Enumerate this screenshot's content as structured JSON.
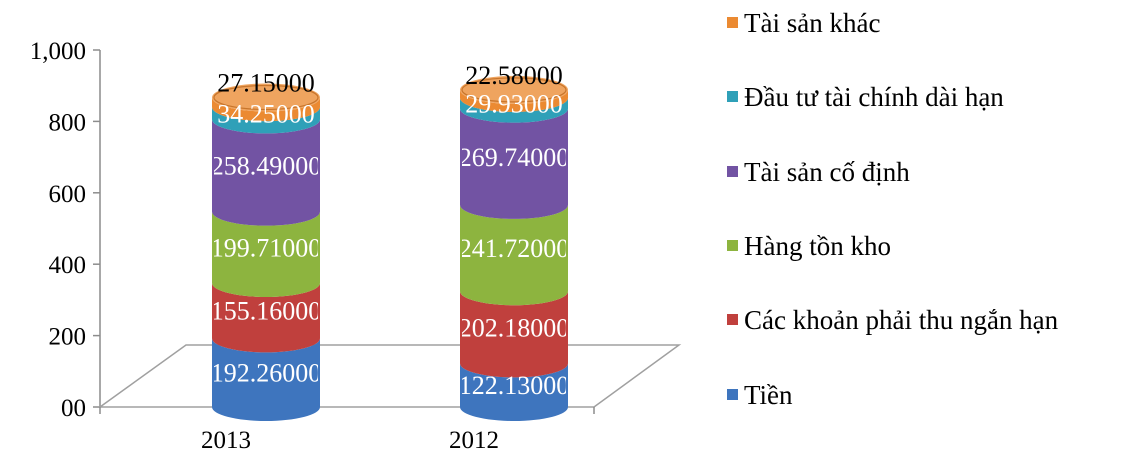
{
  "chart_data": {
    "type": "bar",
    "stacked": true,
    "style": "3d-cylinder",
    "categories": [
      "2013",
      "2012"
    ],
    "series": [
      {
        "name": "Tiền",
        "values": [
          192.26,
          122.13
        ],
        "labels": [
          "192.26000",
          "122.13000"
        ],
        "color": "#3E75BE"
      },
      {
        "name": "Các khoản phải thu ngắn hạn",
        "values": [
          155.16,
          202.18
        ],
        "labels": [
          "155.16000",
          "202.18000"
        ],
        "color": "#C0403D"
      },
      {
        "name": "Hàng tồn kho",
        "values": [
          199.71,
          241.72
        ],
        "labels": [
          "199.71000",
          "241.72000"
        ],
        "color": "#8DB43F"
      },
      {
        "name": "Tài sản cố định",
        "values": [
          258.49,
          269.74
        ],
        "labels": [
          "258.49000",
          "269.74000"
        ],
        "color": "#7253A3"
      },
      {
        "name": "Đầu tư tài chính dài hạn",
        "values": [
          34.25,
          29.93
        ],
        "labels": [
          "34.25000",
          "29.93000"
        ],
        "color": "#2FA0B8"
      },
      {
        "name": "Tài sản khác",
        "values": [
          27.15,
          22.58
        ],
        "labels": [
          "27.15000",
          "22.58000"
        ],
        "color": "#EB8A32"
      }
    ],
    "yticks": [
      "00",
      "200",
      "400",
      "600",
      "800",
      "1,000"
    ],
    "ylim": [
      0,
      1000
    ],
    "legend_position": "right",
    "grid": false
  }
}
